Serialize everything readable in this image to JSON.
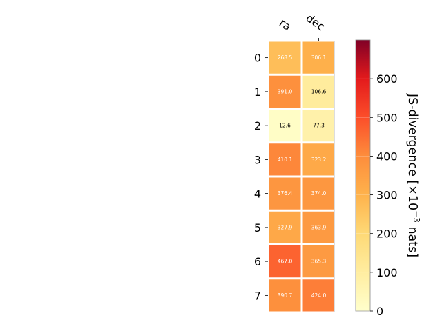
{
  "chart_data": {
    "type": "heatmap",
    "title": "",
    "columns": [
      "ra",
      "dec"
    ],
    "rows": [
      "0",
      "1",
      "2",
      "3",
      "4",
      "5",
      "6",
      "7"
    ],
    "values": [
      [
        268.5,
        306.1
      ],
      [
        391.0,
        106.6
      ],
      [
        12.6,
        77.3
      ],
      [
        410.1,
        323.2
      ],
      [
        376.4,
        374.0
      ],
      [
        327.9,
        363.9
      ],
      [
        467.0,
        365.3
      ],
      [
        390.7,
        424.0
      ]
    ],
    "value_labels": [
      [
        "268.5",
        "306.1"
      ],
      [
        "391.0",
        "106.6"
      ],
      [
        "12.6",
        "77.3"
      ],
      [
        "410.1",
        "323.2"
      ],
      [
        "376.4",
        "374.0"
      ],
      [
        "327.9",
        "363.9"
      ],
      [
        "467.0",
        "365.3"
      ],
      [
        "390.7",
        "424.0"
      ]
    ],
    "colormap": "YlOrRd",
    "vmin": 0,
    "vmax": 700,
    "colorbar": {
      "label": "JS-divergence [×10",
      "label_exponent": "−3",
      "label_suffix": " nats]",
      "ticks": [
        0,
        100,
        200,
        300,
        400,
        500,
        600
      ]
    }
  }
}
